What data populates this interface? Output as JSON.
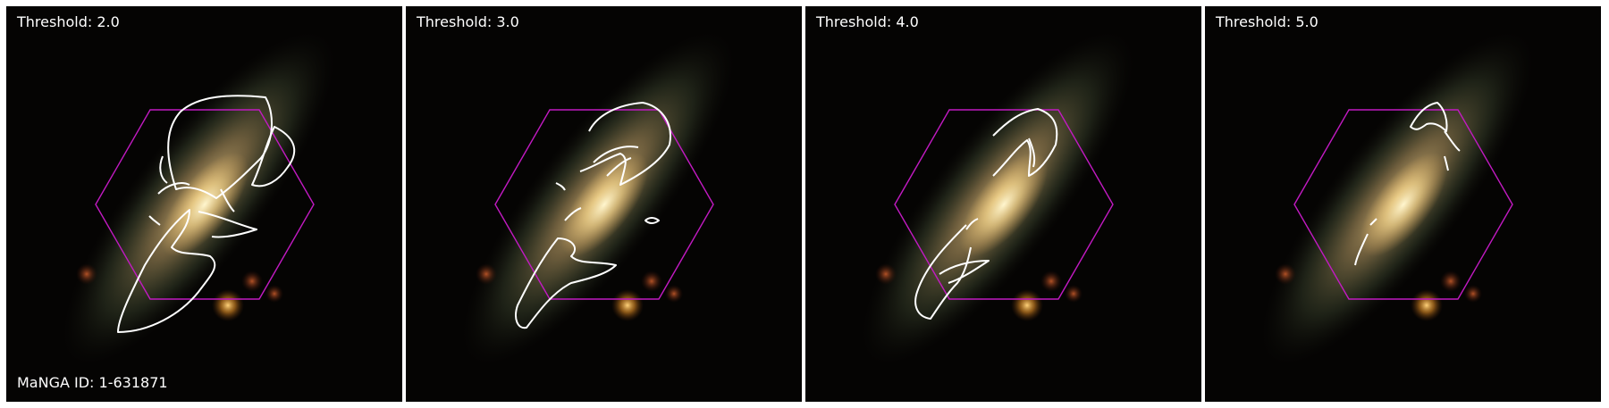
{
  "panels": [
    {
      "threshold_label": "Threshold: 2.0"
    },
    {
      "threshold_label": "Threshold: 3.0"
    },
    {
      "threshold_label": "Threshold: 4.0"
    },
    {
      "threshold_label": "Threshold: 5.0"
    }
  ],
  "manga_id_label": "MaNGA ID: 1-631871",
  "colors": {
    "background": "#050403",
    "galaxy_core": "#fff3c2",
    "galaxy_halo": "#9a7f55",
    "hexagon": "#c21ac2",
    "contour": "#ffffff",
    "star": "#d9901f"
  }
}
